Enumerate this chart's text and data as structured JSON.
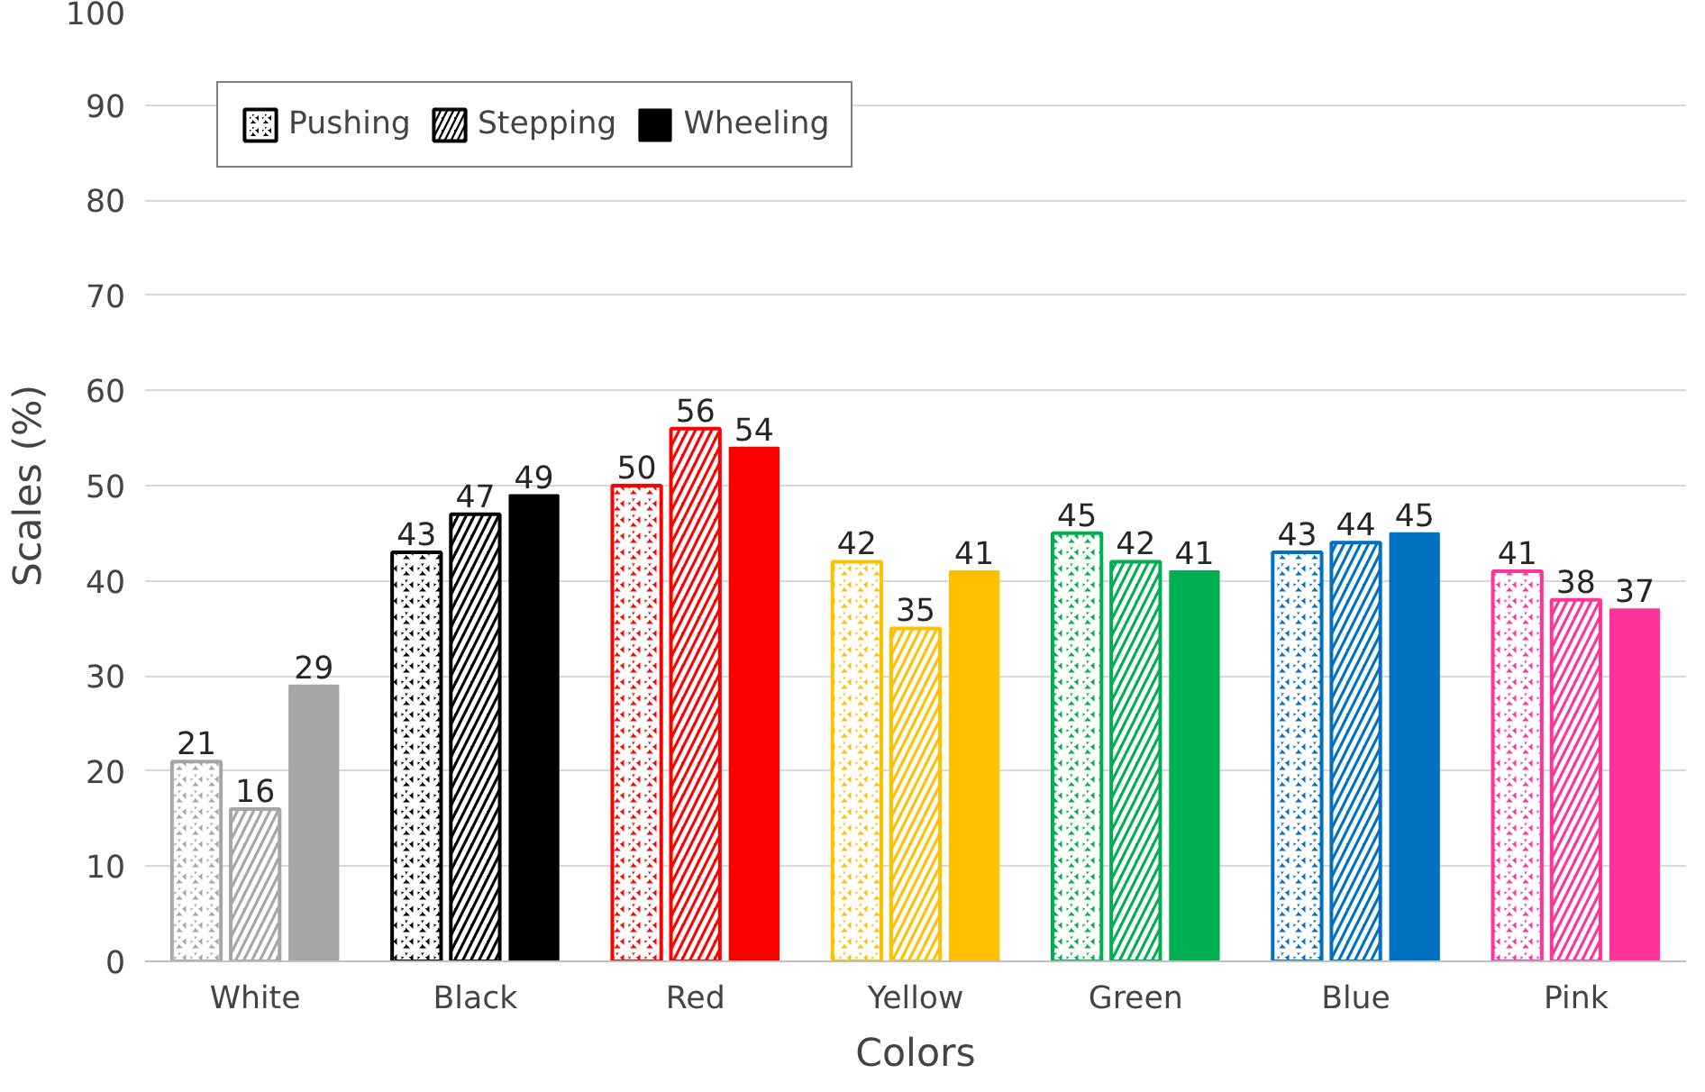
{
  "chart_data": {
    "type": "bar",
    "xlabel": "Colors",
    "ylabel": "Scales (%)",
    "categories": [
      "White",
      "Black",
      "Red",
      "Yellow",
      "Green",
      "Blue",
      "Pink"
    ],
    "series": [
      {
        "name": "Pushing",
        "color": "#000000",
        "colors": [
          "#a6a6a6",
          "#000000",
          "#ff0000",
          "#ffc000",
          "#00b050",
          "#0070c0",
          "#ff3399"
        ],
        "values": [
          21,
          43,
          50,
          42,
          45,
          43,
          41
        ]
      },
      {
        "name": "Stepping",
        "color": "#000000",
        "colors": [
          "#a6a6a6",
          "#000000",
          "#ff0000",
          "#ffc000",
          "#00b050",
          "#0070c0",
          "#ff3399"
        ],
        "values": [
          16,
          47,
          56,
          35,
          42,
          44,
          38
        ]
      },
      {
        "name": "Wheeling",
        "color": "#000000",
        "colors": [
          "#a6a6a6",
          "#000000",
          "#ff0000",
          "#ffc000",
          "#00b050",
          "#0070c0",
          "#ff3399"
        ],
        "values": [
          29,
          49,
          54,
          41,
          41,
          45,
          37
        ]
      }
    ],
    "ylim": [
      0,
      100
    ],
    "yticks": [
      0,
      10,
      20,
      30,
      40,
      50,
      60,
      70,
      80,
      90,
      100
    ],
    "grid": "y",
    "legend": "top left",
    "data_labels": true
  }
}
